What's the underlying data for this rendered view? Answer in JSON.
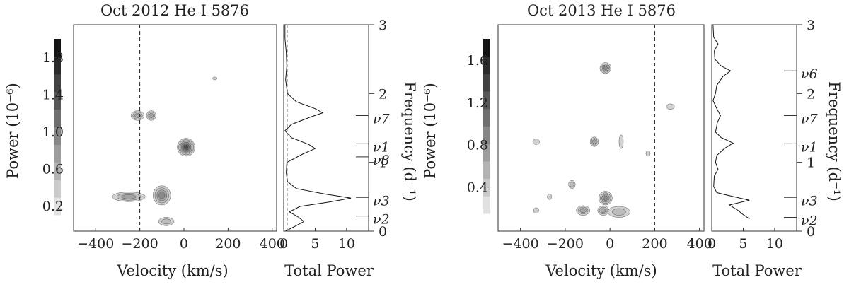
{
  "chart_data": [
    {
      "type": "heatmap",
      "title": "Oct 2012 He I 5876",
      "xlabel": "Velocity (km/s)",
      "ylabel": "Power (10⁻⁶)",
      "xlim": [
        -500,
        420
      ],
      "xticks": [
        -400,
        -200,
        0,
        200,
        400
      ],
      "dashed_velocity": -200,
      "colorbar_ticks": [
        {
          "value": 0.2,
          "label": "0.2"
        },
        {
          "value": 0.6,
          "label": "0.6"
        },
        {
          "value": 1.0,
          "label": "1.0"
        },
        {
          "value": 1.4,
          "label": "1.4"
        },
        {
          "value": 1.8,
          "label": "1.8"
        }
      ],
      "colorbar_range": [
        0.1,
        2.0
      ],
      "freq_range": [
        0,
        3
      ],
      "contours": [
        {
          "v": -210,
          "f": 1.68,
          "dv": 30,
          "df": 0.07,
          "level": 3
        },
        {
          "v": -148,
          "f": 1.68,
          "dv": 22,
          "df": 0.07,
          "level": 3
        },
        {
          "v": 10,
          "f": 1.22,
          "dv": 40,
          "df": 0.13,
          "level": 6
        },
        {
          "v": -250,
          "f": 0.5,
          "dv": 75,
          "df": 0.07,
          "level": 3
        },
        {
          "v": -100,
          "f": 0.52,
          "dv": 40,
          "df": 0.14,
          "level": 4
        },
        {
          "v": -80,
          "f": 0.14,
          "dv": 35,
          "df": 0.06,
          "level": 2
        },
        {
          "v": 140,
          "f": 2.22,
          "dv": 5,
          "df": 0.02,
          "level": 1
        }
      ],
      "side_panel": {
        "xlabel": "Total Power",
        "xlim": [
          0,
          13.5
        ],
        "xticks": [
          0,
          5,
          10
        ],
        "ylabel": "Frequency (d⁻¹)",
        "yticks": [
          0,
          1,
          2,
          3
        ],
        "profile": [
          [
            0.0,
            0.3
          ],
          [
            0.08,
            2.0
          ],
          [
            0.14,
            3.2
          ],
          [
            0.2,
            2.4
          ],
          [
            0.28,
            0.9
          ],
          [
            0.36,
            2.6
          ],
          [
            0.42,
            7.0
          ],
          [
            0.48,
            10.7
          ],
          [
            0.54,
            6.5
          ],
          [
            0.62,
            2.0
          ],
          [
            0.72,
            0.6
          ],
          [
            0.85,
            0.4
          ],
          [
            1.0,
            0.5
          ],
          [
            1.12,
            3.0
          ],
          [
            1.2,
            5.0
          ],
          [
            1.26,
            4.0
          ],
          [
            1.36,
            1.2
          ],
          [
            1.46,
            0.2
          ],
          [
            1.55,
            1.2
          ],
          [
            1.65,
            4.0
          ],
          [
            1.72,
            6.2
          ],
          [
            1.78,
            5.0
          ],
          [
            1.88,
            2.0
          ],
          [
            2.0,
            0.6
          ],
          [
            2.2,
            0.3
          ],
          [
            2.4,
            0.5
          ],
          [
            2.6,
            0.4
          ],
          [
            2.8,
            0.2
          ],
          [
            3.0,
            0.2
          ]
        ],
        "threshold": 0.6,
        "marks": [
          {
            "name": "ν7",
            "f": 1.68
          },
          {
            "name": "ν1",
            "f": 1.27
          },
          {
            "name": "ν8",
            "f": 1.08
          },
          {
            "name": "ν3",
            "f": 0.49
          },
          {
            "name": "ν2",
            "f": 0.22
          }
        ]
      }
    },
    {
      "type": "heatmap",
      "title": "Oct 2013 He I 5876",
      "xlabel": "Velocity (km/s)",
      "ylabel": "Power (10⁻⁶)",
      "xlim": [
        -500,
        420
      ],
      "xticks": [
        -400,
        -200,
        0,
        200,
        400
      ],
      "dashed_velocity": 200,
      "colorbar_ticks": [
        {
          "value": 0.4,
          "label": "0.4"
        },
        {
          "value": 0.8,
          "label": "0.8"
        },
        {
          "value": 1.2,
          "label": "1.2"
        },
        {
          "value": 1.6,
          "label": "1.6"
        }
      ],
      "colorbar_range": [
        0.15,
        1.8
      ],
      "freq_range": [
        0,
        3
      ],
      "contours": [
        {
          "v": -20,
          "f": 2.37,
          "dv": 25,
          "df": 0.08,
          "level": 4
        },
        {
          "v": -170,
          "f": 0.68,
          "dv": 15,
          "df": 0.06,
          "level": 2
        },
        {
          "v": -70,
          "f": 1.3,
          "dv": 18,
          "df": 0.07,
          "level": 3
        },
        {
          "v": -20,
          "f": 0.48,
          "dv": 30,
          "df": 0.1,
          "level": 4
        },
        {
          "v": -120,
          "f": 0.3,
          "dv": 30,
          "df": 0.07,
          "level": 3
        },
        {
          "v": -30,
          "f": 0.3,
          "dv": 25,
          "df": 0.07,
          "level": 3
        },
        {
          "v": 40,
          "f": 0.28,
          "dv": 50,
          "df": 0.08,
          "level": 2
        },
        {
          "v": -330,
          "f": 1.3,
          "dv": 15,
          "df": 0.04,
          "level": 1
        },
        {
          "v": 270,
          "f": 1.81,
          "dv": 18,
          "df": 0.04,
          "level": 1
        },
        {
          "v": 50,
          "f": 1.3,
          "dv": 6,
          "df": 0.1,
          "level": 1
        },
        {
          "v": -330,
          "f": 0.3,
          "dv": 12,
          "df": 0.04,
          "level": 1
        },
        {
          "v": -270,
          "f": 0.5,
          "dv": 10,
          "df": 0.04,
          "level": 1
        },
        {
          "v": 170,
          "f": 1.13,
          "dv": 5,
          "df": 0.04,
          "level": 1
        }
      ],
      "side_panel": {
        "xlabel": "Total Power",
        "xlim": [
          0,
          13.5
        ],
        "xticks": [
          0,
          5,
          10
        ],
        "ylabel": "Frequency (d⁻¹)",
        "yticks": [
          0,
          1,
          2,
          3
        ],
        "profile": [
          [
            0.18,
            6.0
          ],
          [
            0.24,
            5.0
          ],
          [
            0.3,
            4.2
          ],
          [
            0.38,
            2.8
          ],
          [
            0.45,
            6.0
          ],
          [
            0.5,
            3.5
          ],
          [
            0.56,
            0.8
          ],
          [
            0.65,
            0.3
          ],
          [
            0.8,
            0.4
          ],
          [
            0.9,
            1.0
          ],
          [
            1.0,
            0.6
          ],
          [
            1.1,
            0.8
          ],
          [
            1.2,
            2.0
          ],
          [
            1.28,
            3.4
          ],
          [
            1.36,
            1.5
          ],
          [
            1.44,
            0.6
          ],
          [
            1.58,
            0.9
          ],
          [
            1.68,
            1.4
          ],
          [
            1.78,
            0.8
          ],
          [
            1.9,
            0.2
          ],
          [
            2.0,
            0.6
          ],
          [
            2.12,
            0.8
          ],
          [
            2.25,
            1.8
          ],
          [
            2.33,
            3.0
          ],
          [
            2.4,
            1.5
          ],
          [
            2.5,
            0.5
          ],
          [
            2.62,
            0.4
          ],
          [
            2.72,
            1.0
          ],
          [
            2.82,
            0.3
          ],
          [
            3.0,
            0.2
          ]
        ],
        "threshold": 0,
        "marks": [
          {
            "name": "ν6",
            "f": 2.33
          },
          {
            "name": "ν7",
            "f": 1.68
          },
          {
            "name": "ν1",
            "f": 1.27
          },
          {
            "name": "ν3",
            "f": 0.49
          },
          {
            "name": "ν2",
            "f": 0.2
          }
        ]
      }
    }
  ]
}
